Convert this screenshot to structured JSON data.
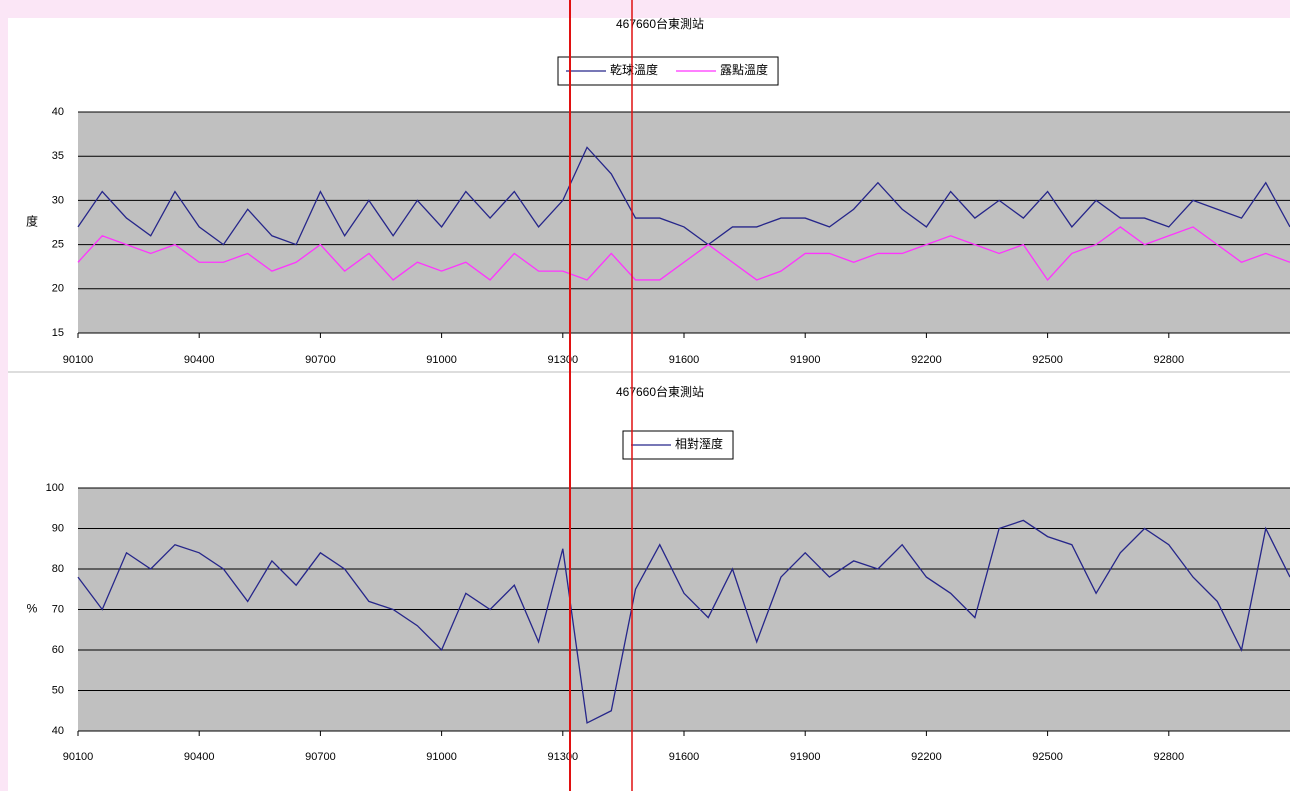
{
  "chart_data": [
    {
      "type": "line",
      "title": "467660台東測站",
      "ylabel": "度",
      "x": [
        0,
        60,
        120,
        180,
        240,
        300,
        360,
        420,
        480,
        540,
        600,
        660,
        720,
        780,
        840,
        900,
        960,
        1020,
        1080,
        1140,
        1200,
        1260,
        1320,
        1380,
        1440,
        1500,
        1560,
        1620,
        1680,
        1740,
        1800,
        1860,
        1920,
        1980,
        2040,
        2100,
        2160,
        2220,
        2280,
        2340,
        2400,
        2460,
        2520,
        2580,
        2640,
        2700,
        2760,
        2820,
        2880,
        2940,
        3000
      ],
      "xlim": [
        0,
        3000
      ],
      "xticks": [
        {
          "value": 0,
          "label": "90100"
        },
        {
          "value": 300,
          "label": "90400"
        },
        {
          "value": 600,
          "label": "90700"
        },
        {
          "value": 900,
          "label": "91000"
        },
        {
          "value": 1200,
          "label": "91300"
        },
        {
          "value": 1500,
          "label": "91600"
        },
        {
          "value": 1800,
          "label": "91900"
        },
        {
          "value": 2100,
          "label": "92200"
        },
        {
          "value": 2400,
          "label": "92500"
        },
        {
          "value": 2700,
          "label": "92800"
        }
      ],
      "ylim": [
        15,
        40
      ],
      "yticks": [
        15,
        20,
        25,
        30,
        35,
        40
      ],
      "grid": true,
      "series": [
        {
          "name": "乾球溫度",
          "color": "#26268a",
          "values": [
            27,
            31,
            28,
            26,
            31,
            27,
            25,
            29,
            26,
            25,
            31,
            26,
            30,
            26,
            30,
            27,
            31,
            28,
            31,
            27,
            30,
            36,
            33,
            28,
            28,
            27,
            25,
            27,
            27,
            28,
            28,
            27,
            29,
            32,
            29,
            27,
            31,
            28,
            30,
            28,
            31,
            27,
            30,
            28,
            28,
            27,
            30,
            29,
            28,
            32,
            27
          ]
        },
        {
          "name": "露點溫度",
          "color": "#ff33ff",
          "values": [
            23,
            26,
            25,
            24,
            25,
            23,
            23,
            24,
            22,
            23,
            25,
            22,
            24,
            21,
            23,
            22,
            23,
            21,
            24,
            22,
            22,
            21,
            24,
            21,
            21,
            23,
            25,
            23,
            21,
            22,
            24,
            24,
            23,
            24,
            24,
            25,
            26,
            25,
            24,
            25,
            21,
            24,
            25,
            27,
            25,
            26,
            27,
            25,
            23,
            24,
            23
          ]
        }
      ]
    },
    {
      "type": "line",
      "title": "467660台東測站",
      "ylabel": "%",
      "x": [
        0,
        60,
        120,
        180,
        240,
        300,
        360,
        420,
        480,
        540,
        600,
        660,
        720,
        780,
        840,
        900,
        960,
        1020,
        1080,
        1140,
        1200,
        1260,
        1320,
        1380,
        1440,
        1500,
        1560,
        1620,
        1680,
        1740,
        1800,
        1860,
        1920,
        1980,
        2040,
        2100,
        2160,
        2220,
        2280,
        2340,
        2400,
        2460,
        2520,
        2580,
        2640,
        2700,
        2760,
        2820,
        2880,
        2940,
        3000
      ],
      "xlim": [
        0,
        3000
      ],
      "xticks": [
        {
          "value": 0,
          "label": "90100"
        },
        {
          "value": 300,
          "label": "90400"
        },
        {
          "value": 600,
          "label": "90700"
        },
        {
          "value": 900,
          "label": "91000"
        },
        {
          "value": 1200,
          "label": "91300"
        },
        {
          "value": 1500,
          "label": "91600"
        },
        {
          "value": 1800,
          "label": "91900"
        },
        {
          "value": 2100,
          "label": "92200"
        },
        {
          "value": 2400,
          "label": "92500"
        },
        {
          "value": 2700,
          "label": "92800"
        }
      ],
      "ylim": [
        40,
        100
      ],
      "yticks": [
        40,
        50,
        60,
        70,
        80,
        90,
        100
      ],
      "grid": true,
      "series": [
        {
          "name": "相對溼度",
          "color": "#26268a",
          "values": [
            78,
            70,
            84,
            80,
            86,
            84,
            80,
            72,
            82,
            76,
            84,
            80,
            72,
            70,
            66,
            60,
            74,
            70,
            76,
            62,
            85,
            42,
            45,
            75,
            86,
            74,
            68,
            80,
            62,
            78,
            84,
            78,
            82,
            80,
            86,
            78,
            74,
            68,
            90,
            92,
            88,
            86,
            74,
            84,
            90,
            86,
            78,
            72,
            60,
            90,
            78
          ]
        }
      ]
    }
  ]
}
